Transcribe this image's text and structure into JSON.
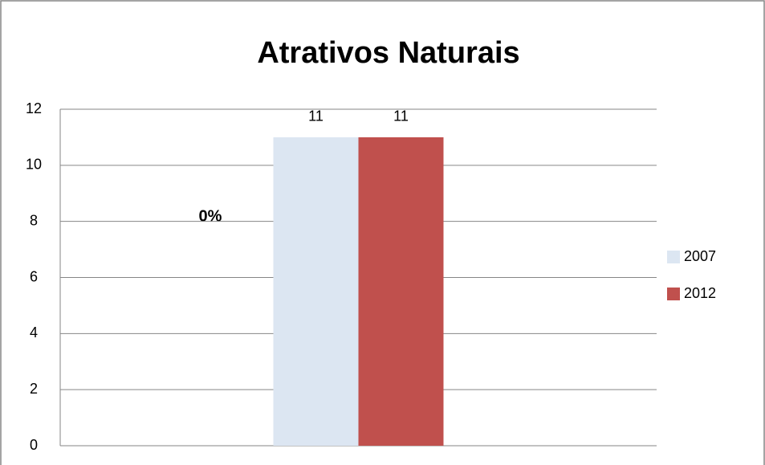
{
  "chart_data": {
    "type": "bar",
    "title": "Atrativos Naturais",
    "annotation": "0%",
    "categories": [
      null
    ],
    "series": [
      {
        "name": "2007",
        "color": "#dce6f2",
        "values": [
          11
        ]
      },
      {
        "name": "2012",
        "color": "#c0504d",
        "values": [
          11
        ]
      }
    ],
    "ylim": [
      0,
      12
    ],
    "yticks": [
      0,
      2,
      4,
      6,
      8,
      10,
      12
    ],
    "grid": true,
    "legend": "right"
  }
}
